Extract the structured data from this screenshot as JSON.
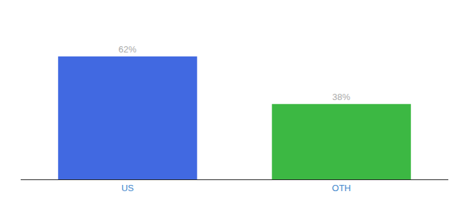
{
  "chart_data": {
    "type": "bar",
    "categories": [
      "US",
      "OTH"
    ],
    "values": [
      62,
      38
    ],
    "value_labels": [
      "62%",
      "38%"
    ],
    "colors": [
      "#4169E1",
      "#3CB843"
    ],
    "ylim": [
      0,
      80
    ],
    "grid": false,
    "data_labels": true,
    "tick_labels": "x"
  }
}
